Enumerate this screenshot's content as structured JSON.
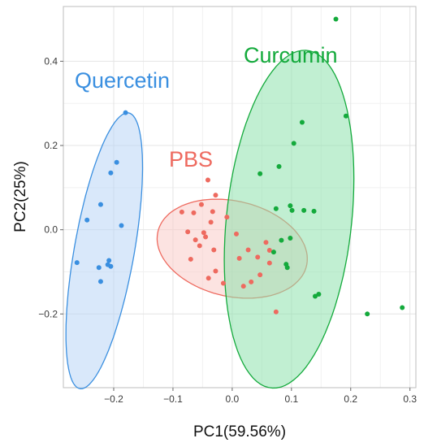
{
  "chart_data": {
    "type": "scatter",
    "title": "",
    "xlabel": "PC1(59.56%)",
    "ylabel": "PC2(25%)",
    "xlim": [
      -0.285,
      0.31
    ],
    "ylim": [
      -0.375,
      0.53
    ],
    "grid": true,
    "x_ticks": [
      -0.2,
      -0.1,
      0.0,
      0.1,
      0.2,
      0.3
    ],
    "x_tick_labels": [
      "−0.2",
      "−0.1",
      "0.0",
      "0.1",
      "0.2",
      "0.3"
    ],
    "y_ticks": [
      -0.2,
      0.0,
      0.2,
      0.4
    ],
    "y_tick_labels": [
      "−0.2",
      "0.0",
      "0.2",
      "0.4"
    ],
    "series": [
      {
        "name": "Quercetin",
        "color": "#3a8fe0",
        "fill": "#b9d6f5",
        "ellipse": {
          "cx": -0.216,
          "cy": -0.05,
          "rx": 0.051,
          "ry": 0.33,
          "rotation_deg": -7
        },
        "points": [
          {
            "x": -0.18,
            "y": 0.278
          },
          {
            "x": -0.195,
            "y": 0.16
          },
          {
            "x": -0.205,
            "y": 0.135
          },
          {
            "x": -0.222,
            "y": 0.06
          },
          {
            "x": -0.245,
            "y": 0.023
          },
          {
            "x": -0.187,
            "y": 0.01
          },
          {
            "x": -0.262,
            "y": -0.078
          },
          {
            "x": -0.208,
            "y": -0.073
          },
          {
            "x": -0.21,
            "y": -0.083
          },
          {
            "x": -0.205,
            "y": -0.087
          },
          {
            "x": -0.225,
            "y": -0.09
          },
          {
            "x": -0.222,
            "y": -0.123
          }
        ]
      },
      {
        "name": "PBS",
        "color": "#ee6a5f",
        "fill": "#f9ccc8",
        "ellipse": {
          "cx": 0.0,
          "cy": -0.045,
          "rx": 0.135,
          "ry": 0.108,
          "rotation_deg": -35
        },
        "points": [
          {
            "x": -0.041,
            "y": 0.118
          },
          {
            "x": -0.028,
            "y": 0.082
          },
          {
            "x": -0.052,
            "y": 0.06
          },
          {
            "x": -0.033,
            "y": 0.043
          },
          {
            "x": -0.085,
            "y": 0.042
          },
          {
            "x": -0.065,
            "y": 0.04
          },
          {
            "x": -0.009,
            "y": 0.03
          },
          {
            "x": -0.036,
            "y": 0.018
          },
          {
            "x": -0.075,
            "y": -0.005
          },
          {
            "x": -0.048,
            "y": -0.007
          },
          {
            "x": -0.045,
            "y": -0.017
          },
          {
            "x": 0.007,
            "y": -0.01
          },
          {
            "x": -0.062,
            "y": -0.024
          },
          {
            "x": -0.055,
            "y": -0.038
          },
          {
            "x": 0.057,
            "y": -0.03
          },
          {
            "x": 0.063,
            "y": -0.049
          },
          {
            "x": 0.027,
            "y": -0.048
          },
          {
            "x": 0.043,
            "y": -0.065
          },
          {
            "x": -0.031,
            "y": -0.048
          },
          {
            "x": -0.07,
            "y": -0.07
          },
          {
            "x": 0.012,
            "y": -0.068
          },
          {
            "x": 0.063,
            "y": -0.079
          },
          {
            "x": -0.028,
            "y": -0.098
          },
          {
            "x": -0.04,
            "y": -0.115
          },
          {
            "x": 0.047,
            "y": -0.107
          },
          {
            "x": 0.032,
            "y": -0.124
          },
          {
            "x": -0.015,
            "y": -0.127
          },
          {
            "x": 0.019,
            "y": -0.134
          },
          {
            "x": 0.074,
            "y": -0.195
          }
        ]
      },
      {
        "name": "Curcumin",
        "color": "#14aa3c",
        "fill": "#8ee2ad",
        "ellipse": {
          "cx": 0.096,
          "cy": 0.025,
          "rx": 0.106,
          "ry": 0.402,
          "rotation_deg": -4
        },
        "points": [
          {
            "x": 0.175,
            "y": 0.5
          },
          {
            "x": 0.192,
            "y": 0.27
          },
          {
            "x": 0.118,
            "y": 0.255
          },
          {
            "x": 0.104,
            "y": 0.205
          },
          {
            "x": 0.079,
            "y": 0.15
          },
          {
            "x": 0.047,
            "y": 0.133
          },
          {
            "x": 0.098,
            "y": 0.057
          },
          {
            "x": 0.074,
            "y": 0.05
          },
          {
            "x": 0.101,
            "y": 0.046
          },
          {
            "x": 0.121,
            "y": 0.046
          },
          {
            "x": 0.138,
            "y": 0.044
          },
          {
            "x": 0.083,
            "y": -0.025
          },
          {
            "x": 0.098,
            "y": -0.02
          },
          {
            "x": 0.07,
            "y": -0.053
          },
          {
            "x": 0.091,
            "y": -0.082
          },
          {
            "x": 0.093,
            "y": -0.09
          },
          {
            "x": 0.146,
            "y": -0.153
          },
          {
            "x": 0.14,
            "y": -0.158
          },
          {
            "x": 0.228,
            "y": -0.2
          },
          {
            "x": 0.287,
            "y": -0.185
          }
        ]
      }
    ]
  }
}
